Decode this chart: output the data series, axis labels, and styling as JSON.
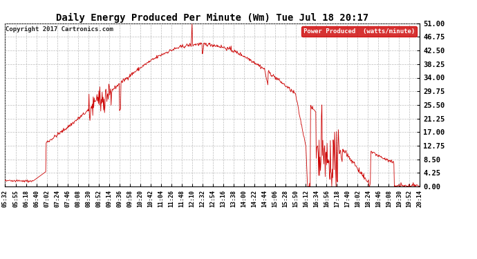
{
  "title": "Daily Energy Produced Per Minute (Wm) Tue Jul 18 20:17",
  "copyright": "Copyright 2017 Cartronics.com",
  "legend_label": "Power Produced  (watts/minute)",
  "legend_bg": "#cc0000",
  "legend_fg": "#ffffff",
  "line_color": "#cc0000",
  "bg_color": "#ffffff",
  "grid_color": "#bbbbbb",
  "title_color": "#000000",
  "ylim": [
    0,
    51.0
  ],
  "yticks": [
    0.0,
    4.25,
    8.5,
    12.75,
    17.0,
    21.25,
    25.5,
    29.75,
    34.0,
    38.25,
    42.5,
    46.75,
    51.0
  ],
  "ytick_labels": [
    "0.00",
    "4.25",
    "8.50",
    "12.75",
    "17.00",
    "21.25",
    "25.50",
    "29.75",
    "34.00",
    "38.25",
    "42.50",
    "46.75",
    "51.00"
  ],
  "xtick_labels": [
    "05:32",
    "05:55",
    "06:18",
    "06:40",
    "07:02",
    "07:24",
    "07:46",
    "08:08",
    "08:30",
    "08:52",
    "09:14",
    "09:36",
    "09:58",
    "10:20",
    "10:42",
    "11:04",
    "11:26",
    "11:48",
    "12:10",
    "12:32",
    "12:54",
    "13:16",
    "13:38",
    "14:00",
    "14:22",
    "14:44",
    "15:06",
    "15:28",
    "15:50",
    "16:12",
    "16:34",
    "16:56",
    "17:18",
    "17:40",
    "18:02",
    "18:24",
    "18:46",
    "19:08",
    "19:30",
    "19:52",
    "20:14"
  ],
  "figsize": [
    6.9,
    3.75
  ],
  "dpi": 100
}
